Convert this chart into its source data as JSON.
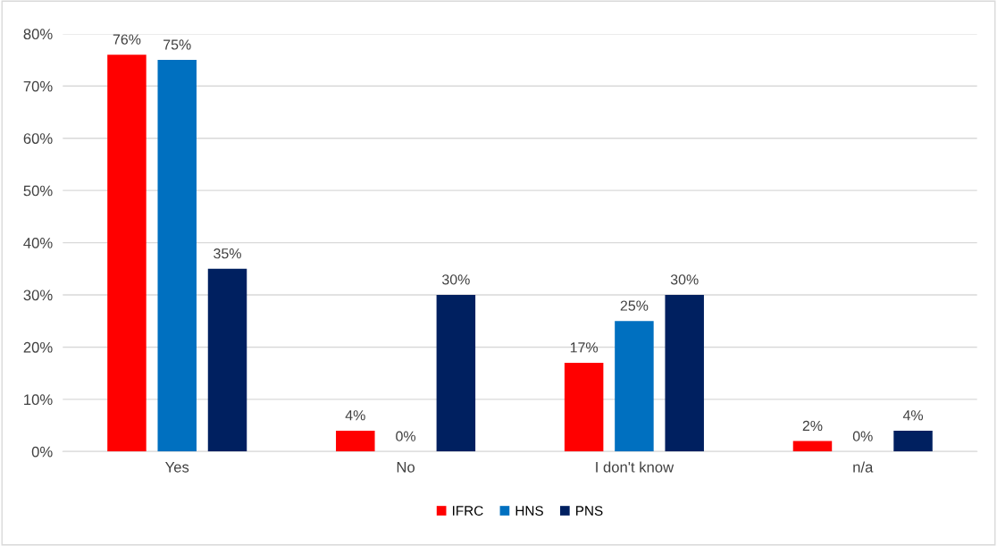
{
  "chart_data": {
    "type": "bar",
    "categories": [
      "Yes",
      "No",
      "I don't know",
      "n/a"
    ],
    "series": [
      {
        "name": "IFRC",
        "color": "#ff0000",
        "values": [
          76,
          4,
          17,
          2
        ],
        "value_labels": [
          "76%",
          "4%",
          "17%",
          "2%"
        ]
      },
      {
        "name": "HNS",
        "color": "#0070c0",
        "values": [
          75,
          0,
          25,
          0
        ],
        "value_labels": [
          "75%",
          "0%",
          "25%",
          "0%"
        ]
      },
      {
        "name": "PNS",
        "color": "#002060",
        "values": [
          35,
          30,
          30,
          4
        ],
        "value_labels": [
          "35%",
          "30%",
          "30%",
          "4%"
        ]
      }
    ],
    "ylim": [
      0,
      80
    ],
    "yticks": [
      {
        "value": 0,
        "label": "0%"
      },
      {
        "value": 10,
        "label": "10%"
      },
      {
        "value": 20,
        "label": "20%"
      },
      {
        "value": 30,
        "label": "30%"
      },
      {
        "value": 40,
        "label": "40%"
      },
      {
        "value": 50,
        "label": "50%"
      },
      {
        "value": 60,
        "label": "60%"
      },
      {
        "value": 70,
        "label": "70%"
      },
      {
        "value": 80,
        "label": "80%"
      }
    ],
    "grid": "y",
    "legend": "bottom"
  }
}
